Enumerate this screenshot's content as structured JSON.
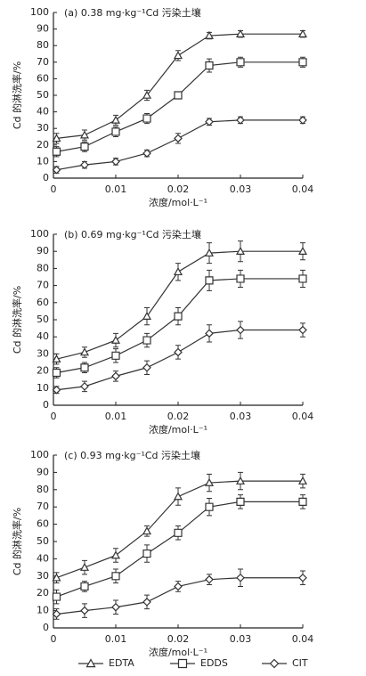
{
  "chart_data": [
    {
      "type": "line",
      "title": "(a) 0.38 mg·kg⁻¹Cd 污染土壤",
      "x_label": "浓度/mol·L⁻¹",
      "y_label": "Cd 的淋洗率/%",
      "x": [
        0.0005,
        0.005,
        0.01,
        0.015,
        0.02,
        0.025,
        0.03,
        0.04
      ],
      "xlim": [
        0,
        0.04
      ],
      "xticks": [
        0,
        0.01,
        0.02,
        0.03,
        0.04
      ],
      "ylim": [
        0,
        100
      ],
      "yticks": [
        0,
        10,
        20,
        30,
        40,
        50,
        60,
        70,
        80,
        90,
        100
      ],
      "series": [
        {
          "name": "EDTA",
          "marker": "triangle",
          "color": "#333333",
          "values": [
            24,
            26,
            35,
            50,
            74,
            86,
            87,
            87
          ],
          "errors": [
            3,
            3,
            3,
            3,
            3,
            2,
            2,
            2
          ]
        },
        {
          "name": "EDDS",
          "marker": "square",
          "color": "#333333",
          "values": [
            16,
            19,
            28,
            36,
            50,
            68,
            70,
            70
          ],
          "errors": [
            3,
            3,
            3,
            3,
            2,
            4,
            3,
            3
          ]
        },
        {
          "name": "CIT",
          "marker": "diamond",
          "color": "#333333",
          "values": [
            5,
            8,
            10,
            15,
            24,
            34,
            35,
            35
          ],
          "errors": [
            2,
            2,
            2,
            2,
            3,
            2,
            2,
            2
          ]
        }
      ]
    },
    {
      "type": "line",
      "title": "(b) 0.69 mg·kg⁻¹Cd 污染土壤",
      "x_label": "浓度/mol·L⁻¹",
      "y_label": "Cd 的淋洗率/%",
      "x": [
        0.0005,
        0.005,
        0.01,
        0.015,
        0.02,
        0.025,
        0.03,
        0.04
      ],
      "xlim": [
        0,
        0.04
      ],
      "xticks": [
        0,
        0.01,
        0.02,
        0.03,
        0.04
      ],
      "ylim": [
        0,
        100
      ],
      "yticks": [
        0,
        10,
        20,
        30,
        40,
        50,
        60,
        70,
        80,
        90,
        100
      ],
      "series": [
        {
          "name": "EDTA",
          "marker": "triangle",
          "color": "#333333",
          "values": [
            27,
            31,
            38,
            52,
            78,
            89,
            90,
            90
          ],
          "errors": [
            3,
            3,
            4,
            5,
            5,
            6,
            6,
            5
          ]
        },
        {
          "name": "EDDS",
          "marker": "square",
          "color": "#333333",
          "values": [
            19,
            22,
            29,
            38,
            52,
            73,
            74,
            74
          ],
          "errors": [
            3,
            3,
            4,
            4,
            5,
            6,
            5,
            5
          ]
        },
        {
          "name": "CIT",
          "marker": "diamond",
          "color": "#333333",
          "values": [
            9,
            11,
            17,
            22,
            31,
            42,
            44,
            44
          ],
          "errors": [
            2,
            3,
            3,
            4,
            4,
            5,
            5,
            4
          ]
        }
      ]
    },
    {
      "type": "line",
      "title": "(c) 0.93 mg·kg⁻¹Cd 污染土壤",
      "x_label": "浓度/mol·L⁻¹",
      "y_label": "Cd 的淋洗率/%",
      "x": [
        0.0005,
        0.005,
        0.01,
        0.015,
        0.02,
        0.025,
        0.03,
        0.04
      ],
      "xlim": [
        0,
        0.04
      ],
      "xticks": [
        0,
        0.01,
        0.02,
        0.03,
        0.04
      ],
      "ylim": [
        0,
        100
      ],
      "yticks": [
        0,
        10,
        20,
        30,
        40,
        50,
        60,
        70,
        80,
        90,
        100
      ],
      "series": [
        {
          "name": "EDTA",
          "marker": "triangle",
          "color": "#333333",
          "values": [
            29,
            35,
            42,
            56,
            76,
            84,
            85,
            85
          ],
          "errors": [
            3,
            4,
            4,
            3,
            5,
            5,
            5,
            4
          ]
        },
        {
          "name": "EDDS",
          "marker": "square",
          "color": "#333333",
          "values": [
            18,
            24,
            30,
            43,
            55,
            70,
            73,
            73
          ],
          "errors": [
            4,
            3,
            4,
            5,
            4,
            5,
            4,
            4
          ]
        },
        {
          "name": "CIT",
          "marker": "diamond",
          "color": "#333333",
          "values": [
            8,
            10,
            12,
            15,
            24,
            28,
            29,
            29
          ],
          "errors": [
            3,
            4,
            4,
            4,
            3,
            3,
            5,
            4
          ]
        }
      ]
    }
  ]
}
